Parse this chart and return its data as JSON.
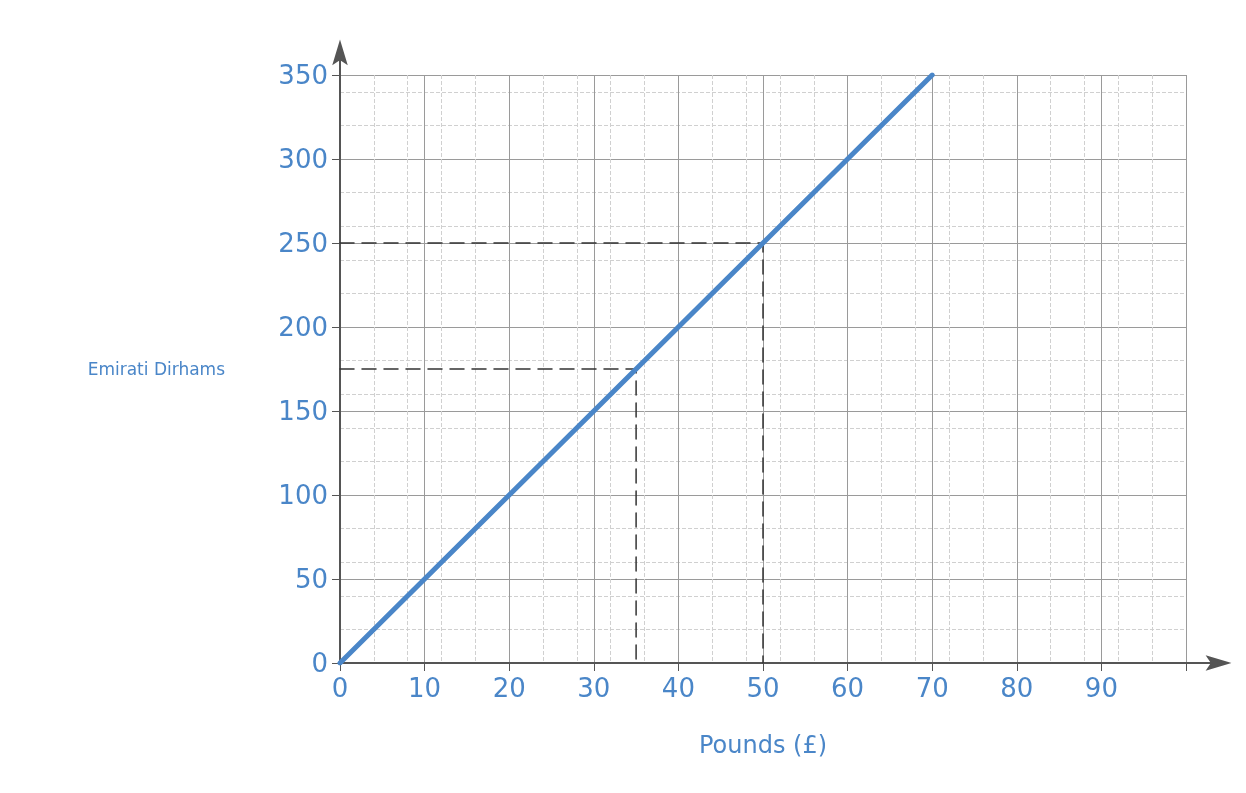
{
  "chart_data": {
    "type": "line",
    "xlabel": "Pounds (£)",
    "ylabel": "Emirati Dirhams",
    "xlim": [
      0,
      100
    ],
    "xticks": [
      0,
      10,
      20,
      30,
      40,
      50,
      60,
      70,
      80,
      90,
      {
        "value": 100,
        "label": null
      }
    ],
    "ylim": [
      0,
      350
    ],
    "yticks": [
      0,
      50,
      100,
      150,
      200,
      250,
      300,
      350
    ],
    "grid": true,
    "marker": "none",
    "line_style": "solid",
    "series": [
      {
        "color": "#4a86c8",
        "x": [
          0,
          70
        ],
        "values": [
          0,
          350
        ]
      },
      {
        "color": "#333333",
        "x": [
          0,
          50,
          50
        ],
        "values": [
          250,
          250,
          0
        ],
        "line_style": "dashed"
      },
      {
        "color": "#333333",
        "x": [
          0,
          35,
          35
        ],
        "values": [
          175,
          175,
          0
        ],
        "line_style": "dashed"
      }
    ]
  }
}
